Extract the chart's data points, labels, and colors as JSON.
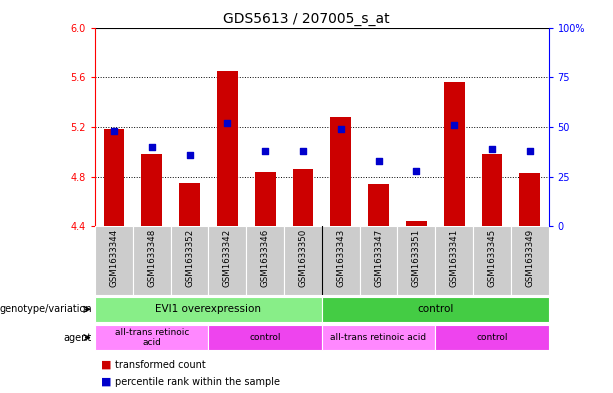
{
  "title": "GDS5613 / 207005_s_at",
  "samples": [
    "GSM1633344",
    "GSM1633348",
    "GSM1633352",
    "GSM1633342",
    "GSM1633346",
    "GSM1633350",
    "GSM1633343",
    "GSM1633347",
    "GSM1633351",
    "GSM1633341",
    "GSM1633345",
    "GSM1633349"
  ],
  "bar_values": [
    5.18,
    4.98,
    4.75,
    5.65,
    4.84,
    4.86,
    5.28,
    4.74,
    4.44,
    5.56,
    4.98,
    4.83
  ],
  "dot_values": [
    48,
    40,
    36,
    52,
    38,
    38,
    49,
    33,
    28,
    51,
    39,
    38
  ],
  "ylim_left": [
    4.4,
    6.0
  ],
  "ylim_right": [
    0,
    100
  ],
  "yticks_left": [
    4.4,
    4.8,
    5.2,
    5.6,
    6.0
  ],
  "yticks_right": [
    0,
    25,
    50,
    75,
    100
  ],
  "bar_color": "#cc0000",
  "dot_color": "#0000cc",
  "bar_bottom": 4.4,
  "grid_values": [
    4.8,
    5.2,
    5.6
  ],
  "genotype_groups": [
    {
      "label": "EVI1 overexpression",
      "start": 0,
      "end": 6,
      "color": "#88ee88"
    },
    {
      "label": "control",
      "start": 6,
      "end": 12,
      "color": "#44cc44"
    }
  ],
  "agent_groups": [
    {
      "label": "all-trans retinoic\nacid",
      "start": 0,
      "end": 3,
      "color": "#ff88ff"
    },
    {
      "label": "control",
      "start": 3,
      "end": 6,
      "color": "#ee44ee"
    },
    {
      "label": "all-trans retinoic acid",
      "start": 6,
      "end": 9,
      "color": "#ff88ff"
    },
    {
      "label": "control",
      "start": 9,
      "end": 12,
      "color": "#ee44ee"
    }
  ],
  "legend_items": [
    {
      "label": "transformed count",
      "color": "#cc0000"
    },
    {
      "label": "percentile rank within the sample",
      "color": "#0000cc"
    }
  ],
  "bg_color": "#ffffff",
  "title_fontsize": 10,
  "tick_fontsize": 7,
  "label_fontsize": 7.5
}
